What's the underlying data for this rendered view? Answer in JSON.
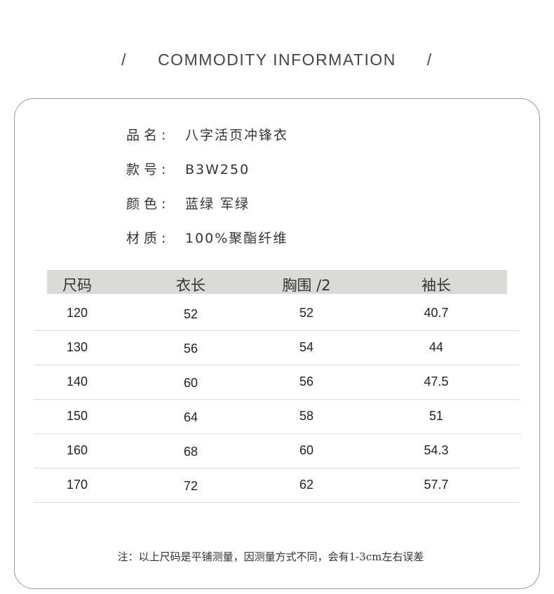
{
  "title": "COMMODITY INFORMATION",
  "info": [
    {
      "label": "品名:",
      "value": "八字活页冲锋衣"
    },
    {
      "label": "款号:",
      "value": "B3W250"
    },
    {
      "label": "颜色:",
      "value": "蓝绿 军绿"
    },
    {
      "label": "材质:",
      "value": "100%聚酯纤维"
    }
  ],
  "table": {
    "headers": [
      "尺码",
      "衣长",
      "胸围 /2",
      "袖长"
    ],
    "rows": [
      [
        "120",
        "52",
        "52",
        "40.7"
      ],
      [
        "130",
        "56",
        "54",
        "44"
      ],
      [
        "140",
        "60",
        "56",
        "47.5"
      ],
      [
        "150",
        "64",
        "58",
        "51"
      ],
      [
        "160",
        "68",
        "60",
        "54.3"
      ],
      [
        "170",
        "72",
        "62",
        "57.7"
      ]
    ]
  },
  "note": "注：以上尺码是平铺测量，因测量方式不同，会有1-3cm左右误差",
  "colors": {
    "header_bg": "#dcdad5",
    "border": "#999999"
  }
}
